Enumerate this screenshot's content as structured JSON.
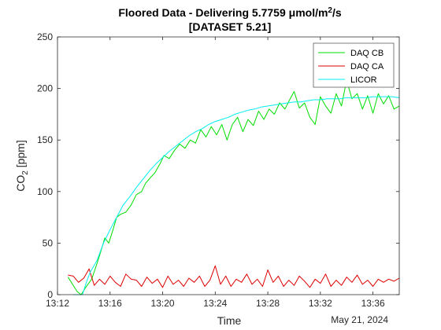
{
  "chart_data": {
    "type": "line",
    "title_line1_main": "Floored Data - Delivering 5.7759 μmol/m",
    "title_line1_sup": "2",
    "title_line1_tail": "/s",
    "title_line2": "[DATASET 5.21]",
    "xlabel": "Time",
    "ylabel_main": "CO",
    "ylabel_sub": "2",
    "ylabel_tail": " [ppm]",
    "date_label": "May 21, 2024",
    "xlim": [
      "13:12",
      "13:38"
    ],
    "ylim": [
      0,
      250
    ],
    "x_ticks": [
      "13:12",
      "13:16",
      "13:20",
      "13:24",
      "13:28",
      "13:32",
      "13:36"
    ],
    "y_ticks": [
      0,
      50,
      100,
      150,
      200,
      250
    ],
    "grid": false,
    "legend_position": "top-right",
    "series": [
      {
        "name": "DAQ CB",
        "color": "#00dd00",
        "points": [
          [
            "13:12:48",
            17
          ],
          [
            "13:13:30",
            3
          ],
          [
            "13:13:48",
            0
          ],
          [
            "13:14:12",
            8
          ],
          [
            "13:14:36",
            15
          ],
          [
            "13:15:00",
            30
          ],
          [
            "13:15:18",
            42
          ],
          [
            "13:15:36",
            55
          ],
          [
            "13:15:54",
            50
          ],
          [
            "13:16:12",
            62
          ],
          [
            "13:16:30",
            75
          ],
          [
            "13:16:48",
            78
          ],
          [
            "13:17:12",
            80
          ],
          [
            "13:17:36",
            87
          ],
          [
            "13:18:00",
            97
          ],
          [
            "13:18:24",
            100
          ],
          [
            "13:18:42",
            108
          ],
          [
            "13:19:06",
            114
          ],
          [
            "13:19:24",
            118
          ],
          [
            "13:19:48",
            127
          ],
          [
            "13:20:06",
            135
          ],
          [
            "13:20:30",
            132
          ],
          [
            "13:20:54",
            140
          ],
          [
            "13:21:18",
            146
          ],
          [
            "13:21:42",
            142
          ],
          [
            "13:22:06",
            150
          ],
          [
            "13:22:30",
            147
          ],
          [
            "13:22:54",
            160
          ],
          [
            "13:23:18",
            153
          ],
          [
            "13:23:42",
            163
          ],
          [
            "13:24:06",
            155
          ],
          [
            "13:24:30",
            165
          ],
          [
            "13:24:54",
            150
          ],
          [
            "13:25:18",
            165
          ],
          [
            "13:25:42",
            172
          ],
          [
            "13:26:06",
            158
          ],
          [
            "13:26:30",
            170
          ],
          [
            "13:26:54",
            164
          ],
          [
            "13:27:18",
            178
          ],
          [
            "13:27:42",
            170
          ],
          [
            "13:28:06",
            180
          ],
          [
            "13:28:30",
            175
          ],
          [
            "13:28:54",
            186
          ],
          [
            "13:29:18",
            180
          ],
          [
            "13:29:42",
            190
          ],
          [
            "13:30:00",
            197
          ],
          [
            "13:30:24",
            181
          ],
          [
            "13:30:48",
            186
          ],
          [
            "13:31:12",
            172
          ],
          [
            "13:31:36",
            165
          ],
          [
            "13:32:00",
            192
          ],
          [
            "13:32:24",
            183
          ],
          [
            "13:32:48",
            176
          ],
          [
            "13:33:12",
            195
          ],
          [
            "13:33:36",
            183
          ],
          [
            "13:34:00",
            208
          ],
          [
            "13:34:24",
            190
          ],
          [
            "13:34:48",
            195
          ],
          [
            "13:35:12",
            180
          ],
          [
            "13:35:36",
            193
          ],
          [
            "13:36:00",
            176
          ],
          [
            "13:36:24",
            195
          ],
          [
            "13:36:48",
            185
          ],
          [
            "13:37:12",
            193
          ],
          [
            "13:37:36",
            180
          ],
          [
            "13:38:00",
            183
          ]
        ]
      },
      {
        "name": "DAQ CA",
        "color": "#dd0000",
        "points": [
          [
            "13:12:48",
            19
          ],
          [
            "13:13:12",
            18
          ],
          [
            "13:13:36",
            12
          ],
          [
            "13:14:00",
            16
          ],
          [
            "13:14:24",
            25
          ],
          [
            "13:14:48",
            9
          ],
          [
            "13:15:12",
            15
          ],
          [
            "13:15:36",
            10
          ],
          [
            "13:16:00",
            18
          ],
          [
            "13:16:24",
            12
          ],
          [
            "13:16:48",
            8
          ],
          [
            "13:17:12",
            20
          ],
          [
            "13:17:36",
            15
          ],
          [
            "13:18:00",
            14
          ],
          [
            "13:18:24",
            8
          ],
          [
            "13:18:48",
            17
          ],
          [
            "13:19:12",
            11
          ],
          [
            "13:19:36",
            15
          ],
          [
            "13:20:00",
            7
          ],
          [
            "13:20:24",
            18
          ],
          [
            "13:20:48",
            10
          ],
          [
            "13:21:12",
            14
          ],
          [
            "13:21:36",
            8
          ],
          [
            "13:22:00",
            16
          ],
          [
            "13:22:24",
            12
          ],
          [
            "13:22:48",
            18
          ],
          [
            "13:23:12",
            8
          ],
          [
            "13:23:36",
            14
          ],
          [
            "13:24:00",
            28
          ],
          [
            "13:24:24",
            10
          ],
          [
            "13:24:48",
            18
          ],
          [
            "13:25:12",
            8
          ],
          [
            "13:25:36",
            15
          ],
          [
            "13:26:00",
            12
          ],
          [
            "13:26:24",
            20
          ],
          [
            "13:26:48",
            10
          ],
          [
            "13:27:12",
            15
          ],
          [
            "13:27:36",
            8
          ],
          [
            "13:28:00",
            24
          ],
          [
            "13:28:24",
            12
          ],
          [
            "13:28:48",
            18
          ],
          [
            "13:29:12",
            8
          ],
          [
            "13:29:36",
            14
          ],
          [
            "13:30:00",
            9
          ],
          [
            "13:30:24",
            18
          ],
          [
            "13:30:48",
            13
          ],
          [
            "13:31:12",
            7
          ],
          [
            "13:31:36",
            15
          ],
          [
            "13:32:00",
            11
          ],
          [
            "13:32:24",
            20
          ],
          [
            "13:32:48",
            8
          ],
          [
            "13:33:12",
            14
          ],
          [
            "13:33:36",
            9
          ],
          [
            "13:34:00",
            17
          ],
          [
            "13:34:24",
            12
          ],
          [
            "13:34:48",
            19
          ],
          [
            "13:35:12",
            10
          ],
          [
            "13:35:36",
            14
          ],
          [
            "13:36:00",
            8
          ],
          [
            "13:36:24",
            15
          ],
          [
            "13:36:48",
            12
          ],
          [
            "13:37:12",
            15
          ],
          [
            "13:37:36",
            13
          ],
          [
            "13:38:00",
            16
          ]
        ]
      },
      {
        "name": "LICOR",
        "color": "#00eeee",
        "points": [
          [
            "13:13:12",
            0
          ],
          [
            "13:13:54",
            0
          ],
          [
            "13:14:12",
            12
          ],
          [
            "13:14:30",
            22
          ],
          [
            "13:15:00",
            33
          ],
          [
            "13:15:30",
            50
          ],
          [
            "13:16:00",
            63
          ],
          [
            "13:16:30",
            75
          ],
          [
            "13:17:00",
            87
          ],
          [
            "13:17:30",
            95
          ],
          [
            "13:18:00",
            104
          ],
          [
            "13:18:30",
            112
          ],
          [
            "13:19:00",
            120
          ],
          [
            "13:19:30",
            127
          ],
          [
            "13:20:00",
            133
          ],
          [
            "13:20:30",
            139
          ],
          [
            "13:21:00",
            144
          ],
          [
            "13:21:30",
            149
          ],
          [
            "13:22:00",
            154
          ],
          [
            "13:22:30",
            158
          ],
          [
            "13:23:00",
            161
          ],
          [
            "13:23:30",
            165
          ],
          [
            "13:24:00",
            168
          ],
          [
            "13:24:30",
            170
          ],
          [
            "13:25:00",
            172
          ],
          [
            "13:25:30",
            175
          ],
          [
            "13:26:00",
            177
          ],
          [
            "13:26:30",
            179
          ],
          [
            "13:27:00",
            180
          ],
          [
            "13:27:30",
            182
          ],
          [
            "13:28:00",
            183
          ],
          [
            "13:28:30",
            184
          ],
          [
            "13:29:00",
            185
          ],
          [
            "13:29:30",
            186
          ],
          [
            "13:30:00",
            187
          ],
          [
            "13:30:30",
            187
          ],
          [
            "13:31:00",
            188
          ],
          [
            "13:31:30",
            189
          ],
          [
            "13:32:00",
            189
          ],
          [
            "13:32:30",
            190
          ],
          [
            "13:33:00",
            190
          ],
          [
            "13:33:30",
            190
          ],
          [
            "13:34:00",
            191
          ],
          [
            "13:34:30",
            191
          ],
          [
            "13:35:00",
            191
          ],
          [
            "13:35:30",
            191
          ],
          [
            "13:36:00",
            192
          ],
          [
            "13:36:30",
            192
          ],
          [
            "13:37:00",
            192
          ],
          [
            "13:37:30",
            192
          ],
          [
            "13:38:00",
            191
          ]
        ]
      }
    ]
  }
}
